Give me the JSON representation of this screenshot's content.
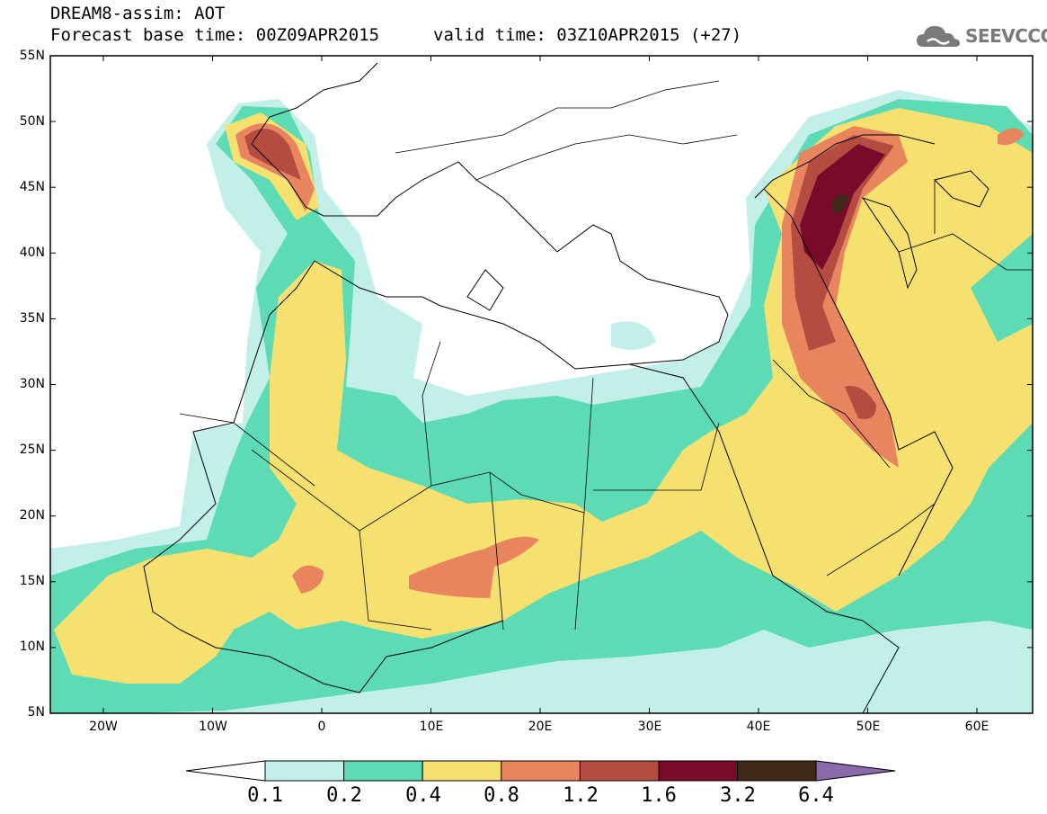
{
  "header": {
    "line1": "DREAM8-assim: AOT",
    "line2": "Forecast base time: 00Z09APR2015",
    "valid": "valid time: 03Z10APR2015 (+27)"
  },
  "logo": {
    "text": "SEEVCCC",
    "icon": "cloud-icon"
  },
  "map": {
    "lat_labels": [
      "55N",
      "50N",
      "45N",
      "40N",
      "35N",
      "30N",
      "25N",
      "20N",
      "15N",
      "10N",
      "5N"
    ],
    "lon_labels": [
      "20W",
      "10W",
      "0",
      "10E",
      "20E",
      "30E",
      "40E",
      "50E",
      "60E"
    ],
    "lat_range": [
      5,
      55
    ],
    "lon_range": [
      -25,
      65
    ]
  },
  "colorbar": {
    "labels": [
      "0.1",
      "0.2",
      "0.4",
      "0.8",
      "1.2",
      "1.6",
      "3.2",
      "6.4"
    ],
    "colors": [
      "#ffffff",
      "#c2efe8",
      "#5ddbb5",
      "#f5e070",
      "#e8855e",
      "#b44c41",
      "#7a0a2a",
      "#3e2a17",
      "#8a6aa8"
    ]
  }
}
